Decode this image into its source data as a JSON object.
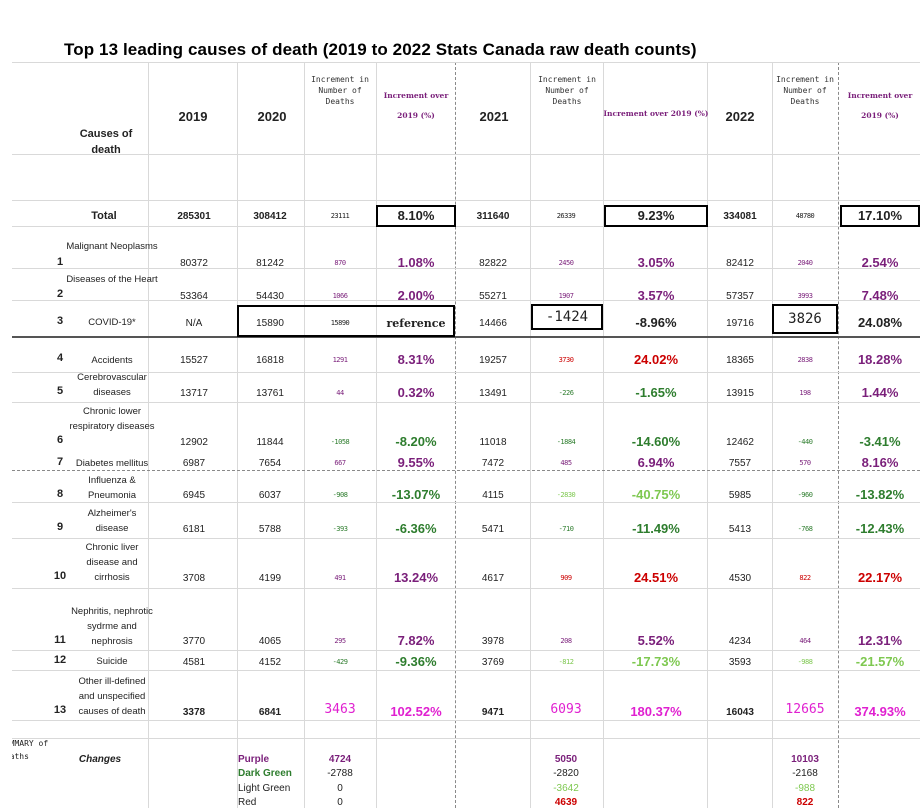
{
  "title": "Top 13 leading causes of death (2019 to 2022 Stats Canada raw death counts)",
  "header": {
    "causes_label": "Causes of death",
    "y2019": "2019",
    "y2020": "2020",
    "y2021": "2021",
    "y2022": "2022",
    "inc_num": "Increment in Number of Deaths",
    "inc_pct_2020": "Increment over 2019 (%)",
    "inc_pct_2021": "Increment over 2019 (%)",
    "inc_pct_2022": "Increment over 2019 (%)"
  },
  "total": {
    "label": "Total",
    "v2019": "285301",
    "v2020": "308412",
    "d2020": "23111",
    "p2020": "8.10%",
    "v2021": "311640",
    "d2021": "26339",
    "p2021": "9.23%",
    "v2022": "334081",
    "d2022": "48780",
    "p2022": "17.10%"
  },
  "rows": [
    {
      "rank": "1",
      "cause": "Malignant Neoplasms",
      "v2019": "80372",
      "v2020": "81242",
      "d2020": "870",
      "p2020": "1.08%",
      "v2021": "82822",
      "d2021": "2450",
      "p2021": "3.05%",
      "v2022": "82412",
      "d2022": "2040",
      "p2022": "2.54%"
    },
    {
      "rank": "2",
      "cause": "Diseases of the Heart",
      "v2019": "53364",
      "v2020": "54430",
      "d2020": "1066",
      "p2020": "2.00%",
      "v2021": "55271",
      "d2021": "1907",
      "p2021": "3.57%",
      "v2022": "57357",
      "d2022": "3993",
      "p2022": "7.48%"
    },
    {
      "rank": "3",
      "cause": "COVID-19*",
      "v2019": "N/A",
      "v2020": "15890",
      "d2020": "15890",
      "p2020": "reference",
      "v2021": "14466",
      "d2021": "-1424",
      "p2021": "-8.96%",
      "v2022": "19716",
      "d2022": "3826",
      "p2022": "24.08%"
    },
    {
      "rank": "4",
      "cause": "Accidents",
      "v2019": "15527",
      "v2020": "16818",
      "d2020": "1291",
      "p2020": "8.31%",
      "v2021": "19257",
      "d2021": "3730",
      "p2021": "24.02%",
      "v2022": "18365",
      "d2022": "2838",
      "p2022": "18.28%"
    },
    {
      "rank": "5",
      "cause": "Cerebrovascular diseases",
      "v2019": "13717",
      "v2020": "13761",
      "d2020": "44",
      "p2020": "0.32%",
      "v2021": "13491",
      "d2021": "-226",
      "p2021": "-1.65%",
      "v2022": "13915",
      "d2022": "198",
      "p2022": "1.44%"
    },
    {
      "rank": "6",
      "cause": "Chronic lower respiratory diseases",
      "v2019": "12902",
      "v2020": "11844",
      "d2020": "-1058",
      "p2020": "-8.20%",
      "v2021": "11018",
      "d2021": "-1884",
      "p2021": "-14.60%",
      "v2022": "12462",
      "d2022": "-440",
      "p2022": "-3.41%"
    },
    {
      "rank": "7",
      "cause": "Diabetes mellitus",
      "v2019": "6987",
      "v2020": "7654",
      "d2020": "667",
      "p2020": "9.55%",
      "v2021": "7472",
      "d2021": "485",
      "p2021": "6.94%",
      "v2022": "7557",
      "d2022": "570",
      "p2022": "8.16%"
    },
    {
      "rank": "8",
      "cause": "Influenza & Pneumonia",
      "v2019": "6945",
      "v2020": "6037",
      "d2020": "-908",
      "p2020": "-13.07%",
      "v2021": "4115",
      "d2021": "-2830",
      "p2021": "-40.75%",
      "v2022": "5985",
      "d2022": "-960",
      "p2022": "-13.82%"
    },
    {
      "rank": "9",
      "cause": "Alzheimer's disease",
      "v2019": "6181",
      "v2020": "5788",
      "d2020": "-393",
      "p2020": "-6.36%",
      "v2021": "5471",
      "d2021": "-710",
      "p2021": "-11.49%",
      "v2022": "5413",
      "d2022": "-768",
      "p2022": "-12.43%"
    },
    {
      "rank": "10",
      "cause": "Chronic liver disease and cirrhosis",
      "v2019": "3708",
      "v2020": "4199",
      "d2020": "491",
      "p2020": "13.24%",
      "v2021": "4617",
      "d2021": "909",
      "p2021": "24.51%",
      "v2022": "4530",
      "d2022": "822",
      "p2022": "22.17%"
    },
    {
      "rank": "11",
      "cause": "Nephritis, nephrotic sydrme and nephrosis",
      "v2019": "3770",
      "v2020": "4065",
      "d2020": "295",
      "p2020": "7.82%",
      "v2021": "3978",
      "d2021": "208",
      "p2021": "5.52%",
      "v2022": "4234",
      "d2022": "464",
      "p2022": "12.31%"
    },
    {
      "rank": "12",
      "cause": "Suicide",
      "v2019": "4581",
      "v2020": "4152",
      "d2020": "-429",
      "p2020": "-9.36%",
      "v2021": "3769",
      "d2021": "-812",
      "p2021": "-17.73%",
      "v2022": "3593",
      "d2022": "-988",
      "p2022": "-21.57%"
    },
    {
      "rank": "13",
      "cause": "Other ill-defined and unspecified causes of death",
      "v2019": "3378",
      "v2020": "6841",
      "d2020": "3463",
      "p2020": "102.52%",
      "v2021": "9471",
      "d2021": "6093",
      "p2021": "180.37%",
      "v2022": "16043",
      "d2022": "12665",
      "p2022": "374.93%"
    }
  ],
  "summary": {
    "label": "SUMMARY of Deaths",
    "changes_label": "Changes",
    "items": [
      {
        "name": "Purple",
        "v2020": "4724",
        "v2021": "5050",
        "v2022": "10103"
      },
      {
        "name": "Dark Green",
        "v2020": "-2788",
        "v2021": "-2820",
        "v2022": "-2168"
      },
      {
        "name": "Light Green",
        "v2020": "0",
        "v2021": "-3642",
        "v2022": "-988"
      },
      {
        "name": "Red",
        "v2020": "0",
        "v2021": "4639",
        "v2022": "822"
      }
    ]
  },
  "colors": {
    "purple": "#7a1f7a",
    "dark_green": "#2e7d2e",
    "light_green": "#7ec850",
    "red": "#cc0000",
    "magenta": "#e020d0"
  }
}
